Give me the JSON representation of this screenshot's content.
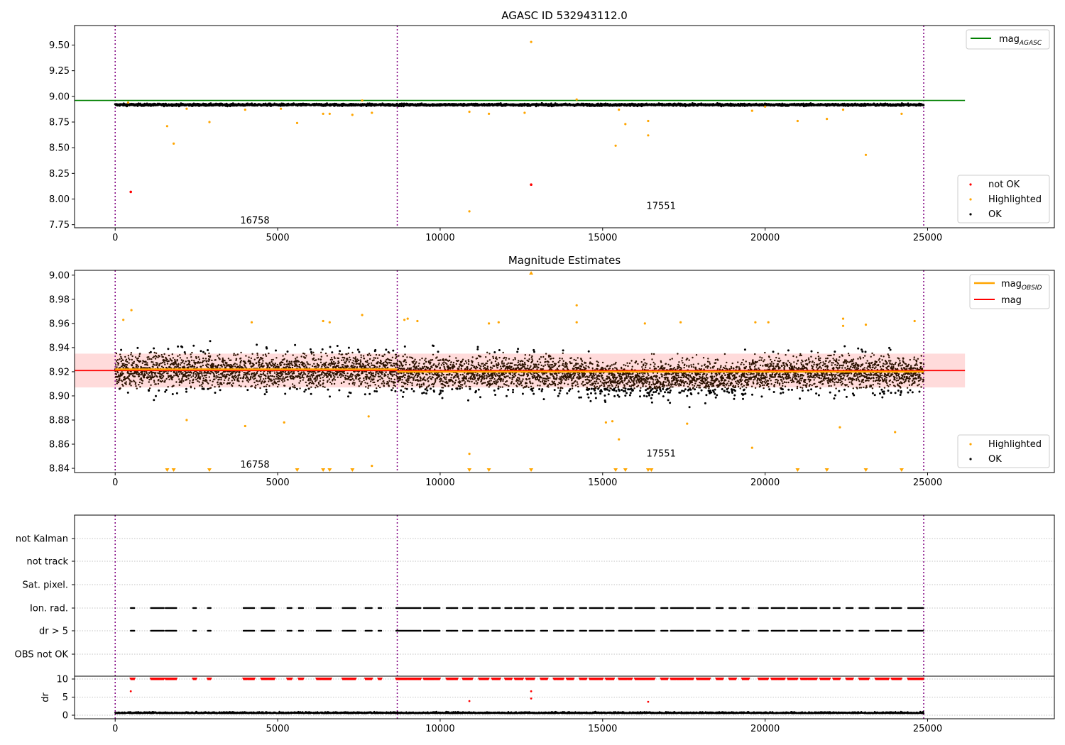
{
  "figure": {
    "title": "AGASC ID 532943112.0"
  },
  "chart_data": [
    {
      "type": "scatter",
      "title": "AGASC ID 532943112.0",
      "xlim": [
        -1250,
        28900
      ],
      "ylim": [
        7.72,
        9.69
      ],
      "x_ticks": [
        0,
        5000,
        10000,
        15000,
        20000,
        25000
      ],
      "x_tick_labels": [
        "0",
        "5000",
        "10000",
        "15000",
        "20000",
        "25000"
      ],
      "y_ticks": [
        7.75,
        8.0,
        8.25,
        8.5,
        8.75,
        9.0,
        9.25,
        9.5
      ],
      "y_tick_labels": [
        "7.75",
        "8.00",
        "8.25",
        "8.50",
        "8.75",
        "9.00",
        "9.25",
        "9.50"
      ],
      "obsid_boundaries": [
        0,
        8680,
        24880
      ],
      "obsid_labels": [
        {
          "text": "16758",
          "x": 4300,
          "y": 7.79
        },
        {
          "text": "17551",
          "x": 16800,
          "y": 7.93
        }
      ],
      "mag_agasc": 8.96,
      "mag_agasc_xrange": [
        -1250,
        26150
      ],
      "ok_band": {
        "center": 8.918,
        "halfwidth": 0.018,
        "x0": 0,
        "x1": 24880
      },
      "highlighted": [
        [
          400,
          8.94
        ],
        [
          1600,
          8.71
        ],
        [
          1800,
          8.54
        ],
        [
          2200,
          8.88
        ],
        [
          2900,
          8.75
        ],
        [
          4000,
          8.87
        ],
        [
          5100,
          8.88
        ],
        [
          5600,
          8.74
        ],
        [
          6400,
          8.83
        ],
        [
          6600,
          8.83
        ],
        [
          7300,
          8.82
        ],
        [
          7600,
          8.96
        ],
        [
          7900,
          8.84
        ],
        [
          12800,
          9.53
        ],
        [
          10900,
          7.88
        ],
        [
          10900,
          8.85
        ],
        [
          11500,
          8.83
        ],
        [
          12600,
          8.84
        ],
        [
          14200,
          8.97
        ],
        [
          15400,
          8.52
        ],
        [
          15500,
          8.87
        ],
        [
          15700,
          8.73
        ],
        [
          16400,
          8.76
        ],
        [
          16400,
          8.62
        ],
        [
          19600,
          8.86
        ],
        [
          20000,
          8.9
        ],
        [
          21000,
          8.76
        ],
        [
          21900,
          8.78
        ],
        [
          22400,
          8.87
        ],
        [
          23100,
          8.43
        ],
        [
          24200,
          8.83
        ]
      ],
      "not_ok": [
        [
          480,
          8.07
        ],
        [
          12800,
          8.14
        ]
      ],
      "legend_lines": [
        {
          "name": "mag",
          "sub": "AGASC",
          "color": "#008000"
        }
      ],
      "legend_markers": [
        {
          "name": "not OK",
          "color": "#ff0000"
        },
        {
          "name": "Highlighted",
          "color": "#ffa500"
        },
        {
          "name": "OK",
          "color": "#000000"
        }
      ]
    },
    {
      "type": "scatter",
      "title": "Magnitude Estimates",
      "xlim": [
        -1250,
        28900
      ],
      "ylim": [
        8.8365,
        9.004
      ],
      "x_ticks": [
        0,
        5000,
        10000,
        15000,
        20000,
        25000
      ],
      "x_tick_labels": [
        "0",
        "5000",
        "10000",
        "15000",
        "20000",
        "25000"
      ],
      "y_ticks": [
        8.84,
        8.86,
        8.88,
        8.9,
        8.92,
        8.94,
        8.96,
        8.98,
        9.0
      ],
      "y_tick_labels": [
        "8.84",
        "8.86",
        "8.88",
        "8.90",
        "8.92",
        "8.94",
        "8.96",
        "8.98",
        "9.00"
      ],
      "obsid_boundaries": [
        0,
        8680,
        24880
      ],
      "obsid_labels": [
        {
          "text": "16758",
          "x": 4300,
          "y": 8.843
        },
        {
          "text": "17551",
          "x": 16800,
          "y": 8.852
        }
      ],
      "mag": 8.921,
      "mag_band": [
        8.907,
        8.935
      ],
      "mag_xrange": [
        -1250,
        26150
      ],
      "mag_obsid": [
        {
          "x0": 0,
          "x1": 8680,
          "y": 8.922
        },
        {
          "x0": 8680,
          "x1": 24880,
          "y": 8.92
        }
      ],
      "highlighted": [
        [
          250,
          8.963
        ],
        [
          500,
          8.971
        ],
        [
          2200,
          8.88
        ],
        [
          4000,
          8.875
        ],
        [
          4200,
          8.961
        ],
        [
          5200,
          8.878
        ],
        [
          6400,
          8.962
        ],
        [
          6600,
          8.961
        ],
        [
          7600,
          8.967
        ],
        [
          7800,
          8.883
        ],
        [
          7900,
          8.842
        ],
        [
          8900,
          8.963
        ],
        [
          9000,
          8.964
        ],
        [
          9300,
          8.962
        ],
        [
          10900,
          8.852
        ],
        [
          11500,
          8.96
        ],
        [
          11800,
          8.961
        ],
        [
          14200,
          8.961
        ],
        [
          14200,
          8.975
        ],
        [
          15100,
          8.878
        ],
        [
          15300,
          8.879
        ],
        [
          15500,
          8.864
        ],
        [
          16300,
          8.96
        ],
        [
          17400,
          8.961
        ],
        [
          17600,
          8.877
        ],
        [
          19600,
          8.857
        ],
        [
          19700,
          8.961
        ],
        [
          20100,
          8.961
        ],
        [
          22300,
          8.874
        ],
        [
          22400,
          8.964
        ],
        [
          22400,
          8.958
        ],
        [
          23100,
          8.959
        ],
        [
          24000,
          8.87
        ],
        [
          24600,
          8.962
        ]
      ],
      "highlighted_clipped": [
        1600,
        1800,
        2900,
        5600,
        6400,
        6600,
        7300,
        10900,
        11500,
        12800,
        15400,
        15700,
        16400,
        16500,
        21000,
        21900,
        23100,
        24200
      ],
      "highlighted_clipped_top": [
        12800
      ],
      "legend_lines": [
        {
          "name": "mag",
          "sub": "OBSID",
          "color": "#ffa500"
        },
        {
          "name": "mag",
          "sub": "",
          "color": "#ff0000"
        }
      ],
      "legend_markers": [
        {
          "name": "Highlighted",
          "color": "#ffa500"
        },
        {
          "name": "OK",
          "color": "#000000"
        }
      ]
    },
    {
      "type": "scatter",
      "title": "",
      "xlim": [
        -1250,
        28900
      ],
      "flag_rows": [
        "not Kalman",
        "not track",
        "Sat. pixel.",
        "Ion. rad.",
        "dr > 5",
        "OBS not OK"
      ],
      "flag_intervals": [
        [
          480,
          600
        ],
        [
          1100,
          1500
        ],
        [
          1550,
          1900
        ],
        [
          2400,
          2500
        ],
        [
          2850,
          2950
        ],
        [
          3950,
          4300
        ],
        [
          4500,
          4900
        ],
        [
          5300,
          5450
        ],
        [
          5650,
          5800
        ],
        [
          6200,
          6650
        ],
        [
          7000,
          7400
        ],
        [
          7700,
          7900
        ],
        [
          8100,
          8200
        ],
        [
          8650,
          9400
        ],
        [
          9500,
          10000
        ],
        [
          10200,
          10550
        ],
        [
          10700,
          11000
        ],
        [
          11200,
          11500
        ],
        [
          11600,
          11850
        ],
        [
          12000,
          12200
        ],
        [
          12300,
          12550
        ],
        [
          12650,
          12900
        ],
        [
          13100,
          13300
        ],
        [
          13500,
          13800
        ],
        [
          13900,
          14100
        ],
        [
          14300,
          14500
        ],
        [
          14600,
          15000
        ],
        [
          15100,
          15350
        ],
        [
          15500,
          15900
        ],
        [
          16000,
          16600
        ],
        [
          16800,
          17000
        ],
        [
          17100,
          17800
        ],
        [
          17900,
          18300
        ],
        [
          18500,
          18700
        ],
        [
          18900,
          19100
        ],
        [
          19300,
          19500
        ],
        [
          19800,
          20100
        ],
        [
          20200,
          20600
        ],
        [
          20700,
          21000
        ],
        [
          21100,
          21600
        ],
        [
          21700,
          22000
        ],
        [
          22100,
          22300
        ],
        [
          22500,
          22700
        ],
        [
          22900,
          23200
        ],
        [
          23400,
          23800
        ],
        [
          23900,
          24200
        ],
        [
          24400,
          24880
        ]
      ],
      "dr_ticks": [
        0,
        5,
        10
      ],
      "dr_tick_labels": [
        "0",
        "5",
        "10"
      ],
      "dr_ylim": [
        -0.5,
        10.5
      ],
      "dr_ylabel": "dr",
      "dr_outliers": [
        [
          480,
          6.6
        ],
        [
          12800,
          6.6
        ],
        [
          10900,
          3.9
        ],
        [
          12800,
          4.6
        ],
        [
          16400,
          3.7
        ]
      ],
      "x_ticks": [
        0,
        5000,
        10000,
        15000,
        20000,
        25000
      ],
      "x_tick_labels": [
        "0",
        "5000",
        "10000",
        "15000",
        "20000",
        "25000"
      ],
      "obsid_boundaries": [
        0,
        8680,
        24880
      ]
    }
  ]
}
